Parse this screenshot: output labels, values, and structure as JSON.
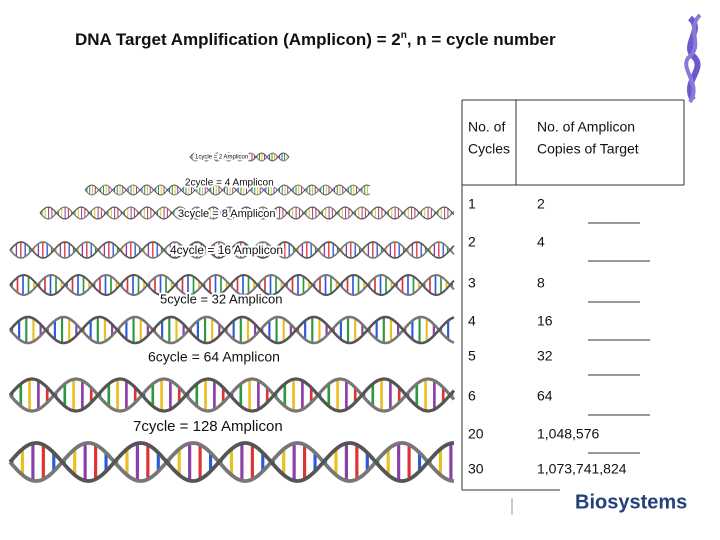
{
  "header": {
    "title_main": "DNA Target Amplification (Amplicon) = 2",
    "title_sup": "n",
    "title_tail": ", n = cycle number"
  },
  "cycle_labels": [
    "1cycle = 2 Amplicon",
    "2cycle = 4 Amplicon",
    "3cycle = 8 Amplicon",
    "4cycle = 16 Amplicon",
    "5cycle = 32 Amplicon",
    "6cycle = 64 Amplicon",
    "7cycle = 128 Amplicon"
  ],
  "table": {
    "headers": [
      [
        "No. of",
        "Cycles"
      ],
      [
        "No. of Amplicon",
        "Copies of Target"
      ]
    ],
    "rows": [
      [
        "1",
        "2"
      ],
      [
        "2",
        "4"
      ],
      [
        "3",
        "8"
      ],
      [
        "4",
        "16"
      ],
      [
        "5",
        "32"
      ],
      [
        "6",
        "64"
      ],
      [
        "20",
        "1,048,576"
      ],
      [
        "30",
        "1,073,741,824"
      ]
    ]
  },
  "logo": "Biosystems"
}
